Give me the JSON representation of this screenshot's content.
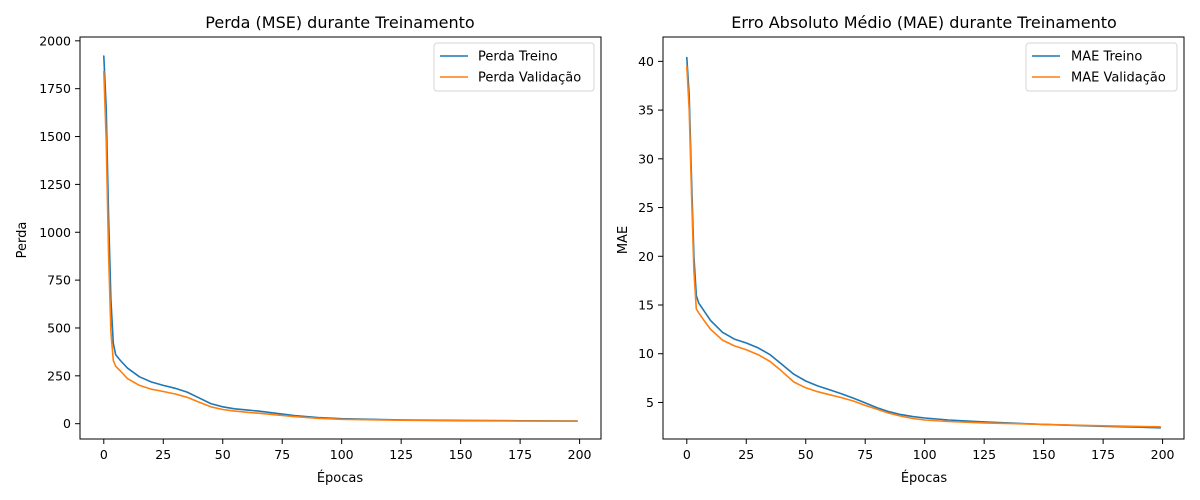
{
  "chart_data": [
    {
      "type": "line",
      "title": "Perda (MSE) durante Treinamento",
      "xlabel": "Épocas",
      "ylabel": "Perda",
      "xlim": [
        -10,
        209
      ],
      "ylim": [
        -80,
        2020
      ],
      "xticks": [
        0,
        25,
        50,
        75,
        100,
        125,
        150,
        175,
        200
      ],
      "yticks": [
        0,
        250,
        500,
        750,
        1000,
        1250,
        1500,
        1750,
        2000
      ],
      "grid": false,
      "legend_position": "top-right",
      "series": [
        {
          "name": "Perda Treino",
          "color": "#1f77b4",
          "x": [
            0,
            1,
            2,
            3,
            4,
            5,
            7,
            10,
            15,
            20,
            25,
            30,
            35,
            40,
            45,
            50,
            55,
            60,
            65,
            70,
            75,
            80,
            90,
            100,
            125,
            150,
            175,
            199
          ],
          "y": [
            1920,
            1650,
            1100,
            650,
            420,
            360,
            330,
            290,
            245,
            218,
            200,
            185,
            165,
            135,
            105,
            88,
            78,
            72,
            66,
            58,
            50,
            42,
            32,
            26,
            20,
            17,
            15,
            14
          ]
        },
        {
          "name": "Perda Validação",
          "color": "#ff7f0e",
          "x": [
            0,
            1,
            2,
            3,
            4,
            5,
            7,
            10,
            15,
            20,
            25,
            30,
            35,
            40,
            45,
            50,
            55,
            60,
            65,
            70,
            75,
            80,
            90,
            100,
            125,
            150,
            175,
            199
          ],
          "y": [
            1840,
            1480,
            900,
            480,
            330,
            300,
            275,
            235,
            200,
            180,
            168,
            155,
            138,
            113,
            88,
            74,
            66,
            60,
            55,
            49,
            43,
            37,
            28,
            23,
            18,
            15,
            14,
            13
          ]
        }
      ]
    },
    {
      "type": "line",
      "title": "Erro Absoluto Médio (MAE) durante Treinamento",
      "xlabel": "Épocas",
      "ylabel": "MAE",
      "xlim": [
        -10,
        209
      ],
      "ylim": [
        1.25,
        42.5
      ],
      "xticks": [
        0,
        25,
        50,
        75,
        100,
        125,
        150,
        175,
        200
      ],
      "yticks": [
        5,
        10,
        15,
        20,
        25,
        30,
        35,
        40
      ],
      "grid": false,
      "legend_position": "top-right",
      "series": [
        {
          "name": "MAE Treino",
          "color": "#1f77b4",
          "x": [
            0,
            1,
            2,
            3,
            4,
            5,
            7,
            10,
            15,
            20,
            25,
            30,
            35,
            40,
            45,
            50,
            55,
            60,
            65,
            70,
            75,
            80,
            85,
            90,
            95,
            100,
            110,
            125,
            150,
            175,
            199
          ],
          "y": [
            40.4,
            36.5,
            28,
            20,
            16,
            15.2,
            14.5,
            13.4,
            12.2,
            11.5,
            11.1,
            10.6,
            9.9,
            8.9,
            7.9,
            7.2,
            6.7,
            6.3,
            5.9,
            5.45,
            4.95,
            4.45,
            4.05,
            3.75,
            3.55,
            3.4,
            3.2,
            3.0,
            2.75,
            2.55,
            2.4
          ],
          "note": ""
        },
        {
          "name": "MAE Validação",
          "color": "#ff7f0e",
          "x": [
            0,
            1,
            2,
            3,
            4,
            5,
            7,
            10,
            15,
            20,
            25,
            30,
            35,
            40,
            45,
            50,
            55,
            60,
            65,
            70,
            75,
            80,
            85,
            90,
            95,
            100,
            110,
            125,
            150,
            175,
            199
          ],
          "y": [
            39.5,
            35,
            26.5,
            18.5,
            14.6,
            14.2,
            13.5,
            12.5,
            11.4,
            10.8,
            10.4,
            9.9,
            9.2,
            8.2,
            7.1,
            6.5,
            6.1,
            5.8,
            5.5,
            5.15,
            4.7,
            4.3,
            3.9,
            3.6,
            3.35,
            3.2,
            3.05,
            2.9,
            2.75,
            2.6,
            2.5
          ]
        }
      ]
    }
  ]
}
